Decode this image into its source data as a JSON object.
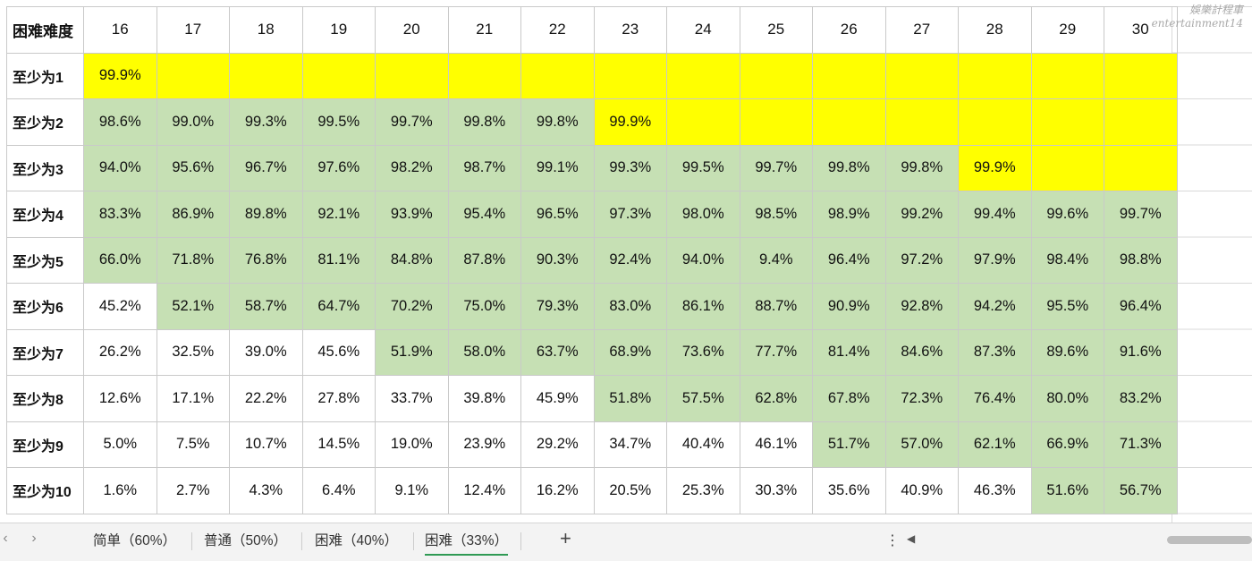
{
  "watermark": {
    "line1": "娛樂計程車",
    "line2": "entertainment14"
  },
  "table": {
    "corner": "困难难度",
    "columns": [
      "16",
      "17",
      "18",
      "19",
      "20",
      "21",
      "22",
      "23",
      "24",
      "25",
      "26",
      "27",
      "28",
      "29",
      "30"
    ],
    "rows": [
      {
        "label": "至少为1",
        "cells": [
          {
            "v": "99.9%",
            "c": "y"
          },
          {
            "v": "",
            "c": "y"
          },
          {
            "v": "",
            "c": "y"
          },
          {
            "v": "",
            "c": "y"
          },
          {
            "v": "",
            "c": "y"
          },
          {
            "v": "",
            "c": "y"
          },
          {
            "v": "",
            "c": "y"
          },
          {
            "v": "",
            "c": "y"
          },
          {
            "v": "",
            "c": "y"
          },
          {
            "v": "",
            "c": "y"
          },
          {
            "v": "",
            "c": "y"
          },
          {
            "v": "",
            "c": "y"
          },
          {
            "v": "",
            "c": "y"
          },
          {
            "v": "",
            "c": "y"
          },
          {
            "v": "",
            "c": "y"
          }
        ]
      },
      {
        "label": "至少为2",
        "cells": [
          {
            "v": "98.6%",
            "c": "g"
          },
          {
            "v": "99.0%",
            "c": "g"
          },
          {
            "v": "99.3%",
            "c": "g"
          },
          {
            "v": "99.5%",
            "c": "g"
          },
          {
            "v": "99.7%",
            "c": "g"
          },
          {
            "v": "99.8%",
            "c": "g"
          },
          {
            "v": "99.8%",
            "c": "g"
          },
          {
            "v": "99.9%",
            "c": "y"
          },
          {
            "v": "",
            "c": "y"
          },
          {
            "v": "",
            "c": "y"
          },
          {
            "v": "",
            "c": "y"
          },
          {
            "v": "",
            "c": "y"
          },
          {
            "v": "",
            "c": "y"
          },
          {
            "v": "",
            "c": "y"
          },
          {
            "v": "",
            "c": "y"
          }
        ]
      },
      {
        "label": "至少为3",
        "cells": [
          {
            "v": "94.0%",
            "c": "g"
          },
          {
            "v": "95.6%",
            "c": "g"
          },
          {
            "v": "96.7%",
            "c": "g"
          },
          {
            "v": "97.6%",
            "c": "g"
          },
          {
            "v": "98.2%",
            "c": "g"
          },
          {
            "v": "98.7%",
            "c": "g"
          },
          {
            "v": "99.1%",
            "c": "g"
          },
          {
            "v": "99.3%",
            "c": "g"
          },
          {
            "v": "99.5%",
            "c": "g"
          },
          {
            "v": "99.7%",
            "c": "g"
          },
          {
            "v": "99.8%",
            "c": "g"
          },
          {
            "v": "99.8%",
            "c": "g"
          },
          {
            "v": "99.9%",
            "c": "y"
          },
          {
            "v": "",
            "c": "y"
          },
          {
            "v": "",
            "c": "y"
          }
        ]
      },
      {
        "label": "至少为4",
        "cells": [
          {
            "v": "83.3%",
            "c": "g"
          },
          {
            "v": "86.9%",
            "c": "g"
          },
          {
            "v": "89.8%",
            "c": "g"
          },
          {
            "v": "92.1%",
            "c": "g"
          },
          {
            "v": "93.9%",
            "c": "g"
          },
          {
            "v": "95.4%",
            "c": "g"
          },
          {
            "v": "96.5%",
            "c": "g"
          },
          {
            "v": "97.3%",
            "c": "g"
          },
          {
            "v": "98.0%",
            "c": "g"
          },
          {
            "v": "98.5%",
            "c": "g"
          },
          {
            "v": "98.9%",
            "c": "g"
          },
          {
            "v": "99.2%",
            "c": "g"
          },
          {
            "v": "99.4%",
            "c": "g"
          },
          {
            "v": "99.6%",
            "c": "g"
          },
          {
            "v": "99.7%",
            "c": "g"
          }
        ]
      },
      {
        "label": "至少为5",
        "cells": [
          {
            "v": "66.0%",
            "c": "g"
          },
          {
            "v": "71.8%",
            "c": "g"
          },
          {
            "v": "76.8%",
            "c": "g"
          },
          {
            "v": "81.1%",
            "c": "g"
          },
          {
            "v": "84.8%",
            "c": "g"
          },
          {
            "v": "87.8%",
            "c": "g"
          },
          {
            "v": "90.3%",
            "c": "g"
          },
          {
            "v": "92.4%",
            "c": "g"
          },
          {
            "v": "94.0%",
            "c": "g"
          },
          {
            "v": "9.4%",
            "c": "g"
          },
          {
            "v": "96.4%",
            "c": "g"
          },
          {
            "v": "97.2%",
            "c": "g"
          },
          {
            "v": "97.9%",
            "c": "g"
          },
          {
            "v": "98.4%",
            "c": "g"
          },
          {
            "v": "98.8%",
            "c": "g"
          }
        ]
      },
      {
        "label": "至少为6",
        "cells": [
          {
            "v": "45.2%",
            "c": "w"
          },
          {
            "v": "52.1%",
            "c": "g"
          },
          {
            "v": "58.7%",
            "c": "g"
          },
          {
            "v": "64.7%",
            "c": "g"
          },
          {
            "v": "70.2%",
            "c": "g"
          },
          {
            "v": "75.0%",
            "c": "g"
          },
          {
            "v": "79.3%",
            "c": "g"
          },
          {
            "v": "83.0%",
            "c": "g"
          },
          {
            "v": "86.1%",
            "c": "g"
          },
          {
            "v": "88.7%",
            "c": "g"
          },
          {
            "v": "90.9%",
            "c": "g"
          },
          {
            "v": "92.8%",
            "c": "g"
          },
          {
            "v": "94.2%",
            "c": "g"
          },
          {
            "v": "95.5%",
            "c": "g"
          },
          {
            "v": "96.4%",
            "c": "g"
          }
        ]
      },
      {
        "label": "至少为7",
        "cells": [
          {
            "v": "26.2%",
            "c": "w"
          },
          {
            "v": "32.5%",
            "c": "w"
          },
          {
            "v": "39.0%",
            "c": "w"
          },
          {
            "v": "45.6%",
            "c": "w"
          },
          {
            "v": "51.9%",
            "c": "g"
          },
          {
            "v": "58.0%",
            "c": "g"
          },
          {
            "v": "63.7%",
            "c": "g"
          },
          {
            "v": "68.9%",
            "c": "g"
          },
          {
            "v": "73.6%",
            "c": "g"
          },
          {
            "v": "77.7%",
            "c": "g"
          },
          {
            "v": "81.4%",
            "c": "g"
          },
          {
            "v": "84.6%",
            "c": "g"
          },
          {
            "v": "87.3%",
            "c": "g"
          },
          {
            "v": "89.6%",
            "c": "g"
          },
          {
            "v": "91.6%",
            "c": "g"
          }
        ]
      },
      {
        "label": "至少为8",
        "cells": [
          {
            "v": "12.6%",
            "c": "w"
          },
          {
            "v": "17.1%",
            "c": "w"
          },
          {
            "v": "22.2%",
            "c": "w"
          },
          {
            "v": "27.8%",
            "c": "w"
          },
          {
            "v": "33.7%",
            "c": "w"
          },
          {
            "v": "39.8%",
            "c": "w"
          },
          {
            "v": "45.9%",
            "c": "w"
          },
          {
            "v": "51.8%",
            "c": "g"
          },
          {
            "v": "57.5%",
            "c": "g"
          },
          {
            "v": "62.8%",
            "c": "g"
          },
          {
            "v": "67.8%",
            "c": "g"
          },
          {
            "v": "72.3%",
            "c": "g"
          },
          {
            "v": "76.4%",
            "c": "g"
          },
          {
            "v": "80.0%",
            "c": "g"
          },
          {
            "v": "83.2%",
            "c": "g"
          }
        ]
      },
      {
        "label": "至少为9",
        "cells": [
          {
            "v": "5.0%",
            "c": "w"
          },
          {
            "v": "7.5%",
            "c": "w"
          },
          {
            "v": "10.7%",
            "c": "w"
          },
          {
            "v": "14.5%",
            "c": "w"
          },
          {
            "v": "19.0%",
            "c": "w"
          },
          {
            "v": "23.9%",
            "c": "w"
          },
          {
            "v": "29.2%",
            "c": "w"
          },
          {
            "v": "34.7%",
            "c": "w"
          },
          {
            "v": "40.4%",
            "c": "w"
          },
          {
            "v": "46.1%",
            "c": "w"
          },
          {
            "v": "51.7%",
            "c": "g"
          },
          {
            "v": "57.0%",
            "c": "g"
          },
          {
            "v": "62.1%",
            "c": "g"
          },
          {
            "v": "66.9%",
            "c": "g"
          },
          {
            "v": "71.3%",
            "c": "g"
          }
        ]
      },
      {
        "label": "至少为10",
        "cells": [
          {
            "v": "1.6%",
            "c": "w"
          },
          {
            "v": "2.7%",
            "c": "w"
          },
          {
            "v": "4.3%",
            "c": "w"
          },
          {
            "v": "6.4%",
            "c": "w"
          },
          {
            "v": "9.1%",
            "c": "w"
          },
          {
            "v": "12.4%",
            "c": "w"
          },
          {
            "v": "16.2%",
            "c": "w"
          },
          {
            "v": "20.5%",
            "c": "w"
          },
          {
            "v": "25.3%",
            "c": "w"
          },
          {
            "v": "30.3%",
            "c": "w"
          },
          {
            "v": "35.6%",
            "c": "w"
          },
          {
            "v": "40.9%",
            "c": "w"
          },
          {
            "v": "46.3%",
            "c": "w"
          },
          {
            "v": "51.6%",
            "c": "g"
          },
          {
            "v": "56.7%",
            "c": "g"
          }
        ]
      }
    ]
  },
  "tabs": [
    {
      "label": "简单（60%）",
      "active": false
    },
    {
      "label": "普通（50%）",
      "active": false
    },
    {
      "label": "困难（40%）",
      "active": false
    },
    {
      "label": "困难（33%）",
      "active": true
    }
  ],
  "toolbar": {
    "prev_icon": "chevron-left-icon",
    "next_icon": "chevron-right-icon",
    "prev_glyph": "‹",
    "next_glyph": "›",
    "add_glyph": "+",
    "more_glyph": "⋮",
    "scroll_left_glyph": "◀"
  },
  "colors": {
    "green": "#c6e0b4",
    "yellow": "#ffff00",
    "active_tab": "#2f9a54"
  }
}
